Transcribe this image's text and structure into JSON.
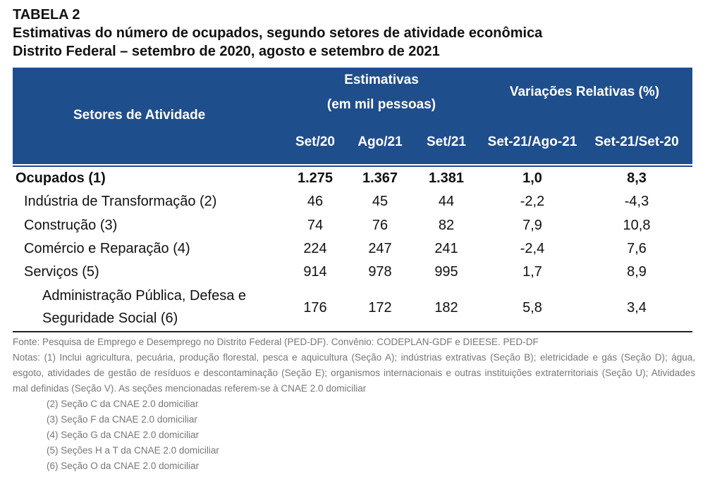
{
  "title": {
    "line1": "TABELA 2",
    "line2": "Estimativas do número de ocupados, segundo setores de atividade econômica",
    "line3": "Distrito Federal – setembro de 2020, agosto e setembro de 2021"
  },
  "header": {
    "setores": "Setores de Atividade",
    "estimativas_line1": "Estimativas",
    "estimativas_line2": "(em mil pessoas)",
    "variacoes": "Variações Relativas (%)",
    "columns": [
      "Set/20",
      "Ago/21",
      "Set/21",
      "Set-21/Ago-21",
      "Set-21/Set-20"
    ],
    "bg_color": "#1f4e8c"
  },
  "rows": [
    {
      "label": "Ocupados (1)",
      "values": [
        "1.275",
        "1.367",
        "1.381",
        "1,0",
        "8,3"
      ]
    },
    {
      "label": "Indústria de Transformação (2)",
      "values": [
        "46",
        "45",
        "44",
        "-2,2",
        "-4,3"
      ]
    },
    {
      "label": "Construção (3)",
      "values": [
        "74",
        "76",
        "82",
        "7,9",
        "10,8"
      ]
    },
    {
      "label": "Comércio e Reparação (4)",
      "values": [
        "224",
        "247",
        "241",
        "-2,4",
        "7,6"
      ]
    },
    {
      "label": "Serviços (5)",
      "values": [
        "914",
        "978",
        "995",
        "1,7",
        "8,9"
      ]
    },
    {
      "label_line1": "Administração Pública, Defesa e",
      "label_line2": "Seguridade Social (6)",
      "values": [
        "176",
        "172",
        "182",
        "5,8",
        "3,4"
      ]
    }
  ],
  "notes": {
    "fonte": "Fonte: Pesquisa de Emprego e Desemprego no Distrito Federal (PED-DF). Convênio: CODEPLAN-GDF e DIEESE. PED-DF",
    "nota1": "Notas: (1) Inclui agricultura, pecuária, produção florestal, pesca e aquicultura (Seção A); indústrias extrativas (Seção B); eletricidade e gás (Seção D); água, esgoto, atividades de gestão de resíduos e descontaminação (Seção E); organismos internacionais e outras instituições extraterritoriais (Seção U); Atividades mal definidas (Seção V). As seções mencionadas referem-se à CNAE 2.0 domiciliar",
    "items": [
      "(2) Seção C da CNAE 2.0 domiciliar",
      "(3) Seção F da CNAE 2.0 domiciliar",
      "(4) Seção G da CNAE 2.0 domiciliar",
      "(5) Seções H a T da CNAE 2.0 domiciliar",
      "(6) Seção O da CNAE 2.0 domiciliar"
    ]
  }
}
